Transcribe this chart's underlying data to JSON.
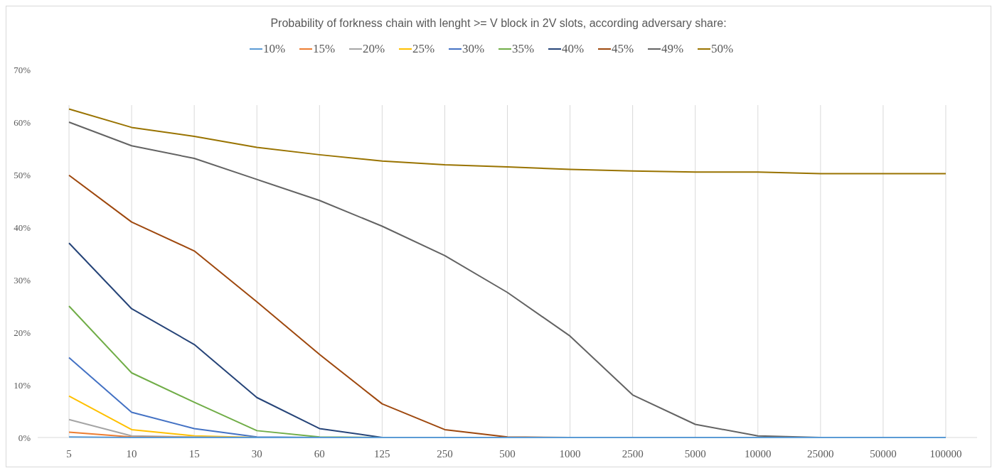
{
  "chart_data": {
    "type": "line",
    "title": "Probability of forkness chain with lenght >= V block in 2V slots, according adversary share:",
    "categories": [
      "5",
      "10",
      "15",
      "30",
      "60",
      "125",
      "250",
      "500",
      "1000",
      "2500",
      "5000",
      "10000",
      "25000",
      "50000",
      "100000"
    ],
    "series": [
      {
        "name": "10%",
        "color": "#5b9bd5",
        "values": [
          0.1,
          0,
          0,
          0,
          0,
          0,
          0,
          0,
          0,
          0,
          0,
          0,
          0,
          0,
          0
        ]
      },
      {
        "name": "15%",
        "color": "#ed7d31",
        "values": [
          1.0,
          0.1,
          0,
          null,
          null,
          null,
          null,
          null,
          null,
          null,
          null,
          null,
          null,
          null,
          null
        ]
      },
      {
        "name": "20%",
        "color": "#a5a5a5",
        "values": [
          3.4,
          0.3,
          0.1,
          0,
          null,
          null,
          null,
          null,
          null,
          null,
          null,
          null,
          null,
          null,
          null
        ]
      },
      {
        "name": "25%",
        "color": "#ffc000",
        "values": [
          7.9,
          1.5,
          0.3,
          0,
          null,
          null,
          null,
          null,
          null,
          null,
          null,
          null,
          null,
          null,
          null
        ]
      },
      {
        "name": "30%",
        "color": "#4472c4",
        "values": [
          15.2,
          4.8,
          1.7,
          0.1,
          0,
          null,
          null,
          null,
          null,
          null,
          null,
          null,
          null,
          null,
          null
        ]
      },
      {
        "name": "35%",
        "color": "#70ad47",
        "values": [
          25,
          12.3,
          6.7,
          1.3,
          0.1,
          0,
          null,
          null,
          null,
          null,
          null,
          null,
          null,
          null,
          null
        ]
      },
      {
        "name": "40%",
        "color": "#264478",
        "values": [
          37,
          24.5,
          17.7,
          7.6,
          1.7,
          0,
          null,
          null,
          null,
          null,
          null,
          null,
          null,
          null,
          null
        ]
      },
      {
        "name": "45%",
        "color": "#9e480e",
        "values": [
          49.9,
          41,
          35.5,
          25.8,
          15.8,
          6.4,
          1.5,
          0.1,
          0,
          null,
          null,
          null,
          null,
          null,
          null
        ]
      },
      {
        "name": "49%",
        "color": "#636363",
        "values": [
          60,
          55.5,
          53.1,
          49.1,
          45.1,
          40.2,
          34.6,
          27.6,
          19.3,
          8.1,
          2.5,
          0.3,
          0,
          null,
          null
        ]
      },
      {
        "name": "50%",
        "color": "#997300",
        "values": [
          62.5,
          59,
          57.3,
          55.2,
          53.8,
          52.6,
          51.9,
          51.5,
          51,
          50.7,
          50.5,
          50.5,
          50.2,
          50.2,
          50.2
        ]
      }
    ],
    "ylim": [
      0,
      70
    ],
    "yticks": [
      {
        "value": 0,
        "label": "0%"
      },
      {
        "value": 10,
        "label": "10%"
      },
      {
        "value": 20,
        "label": "20%"
      },
      {
        "value": 30,
        "label": "30%"
      },
      {
        "value": 40,
        "label": "40%"
      },
      {
        "value": 50,
        "label": "50%"
      },
      {
        "value": 60,
        "label": "60%"
      },
      {
        "value": 70,
        "label": "70%"
      }
    ],
    "grid": "x",
    "legend": "top",
    "marker": "none",
    "line_style": "solid"
  }
}
